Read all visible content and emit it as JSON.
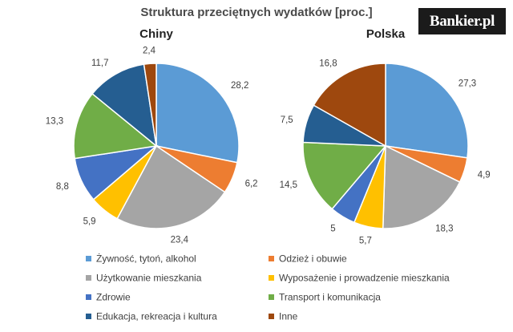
{
  "title": "Struktura przeciętnych wydatków [proc.]",
  "logo_text": "Bankier.pl",
  "legend": [
    {
      "label": "Żywność, tytoń, alkohol",
      "color": "#5b9bd5"
    },
    {
      "label": "Odzież i obuwie",
      "color": "#ed7d31"
    },
    {
      "label": "Użytkowanie mieszkania",
      "color": "#a5a5a5"
    },
    {
      "label": "Wyposażenie i prowadzenie mieszkania",
      "color": "#ffc000"
    },
    {
      "label": "Zdrowie",
      "color": "#4472c4"
    },
    {
      "label": "Transport i komunikacja",
      "color": "#70ad47"
    },
    {
      "label": "Edukacja, rekreacja i kultura",
      "color": "#255e91"
    },
    {
      "label": "Inne",
      "color": "#9e480e"
    }
  ],
  "chart_data": [
    {
      "type": "pie",
      "title": "Chiny",
      "categories": [
        "Żywność, tytoń, alkohol",
        "Odzież i obuwie",
        "Użytkowanie mieszkania",
        "Wyposażenie i prowadzenie mieszkania",
        "Zdrowie",
        "Transport i komunikacja",
        "Edukacja, rekreacja i kultura",
        "Inne"
      ],
      "values": [
        28.2,
        6.2,
        23.4,
        5.9,
        8.8,
        13.3,
        11.7,
        2.4
      ],
      "labels": [
        "28,2",
        "6,2",
        "23,4",
        "5,9",
        "8,8",
        "13,3",
        "11,7",
        "2,4"
      ],
      "colors": [
        "#5b9bd5",
        "#ed7d31",
        "#a5a5a5",
        "#ffc000",
        "#4472c4",
        "#70ad47",
        "#255e91",
        "#9e480e"
      ]
    },
    {
      "type": "pie",
      "title": "Polska",
      "categories": [
        "Żywność, tytoń, alkohol",
        "Odzież i obuwie",
        "Użytkowanie mieszkania",
        "Wyposażenie i prowadzenie mieszkania",
        "Zdrowie",
        "Transport i komunikacja",
        "Edukacja, rekreacja i kultura",
        "Inne"
      ],
      "values": [
        27.3,
        4.9,
        18.3,
        5.7,
        5,
        14.5,
        7.5,
        16.8
      ],
      "labels": [
        "27,3",
        "4,9",
        "18,3",
        "5,7",
        "5",
        "14,5",
        "7,5",
        "16,8"
      ],
      "colors": [
        "#5b9bd5",
        "#ed7d31",
        "#a5a5a5",
        "#ffc000",
        "#4472c4",
        "#70ad47",
        "#255e91",
        "#9e480e"
      ]
    }
  ]
}
